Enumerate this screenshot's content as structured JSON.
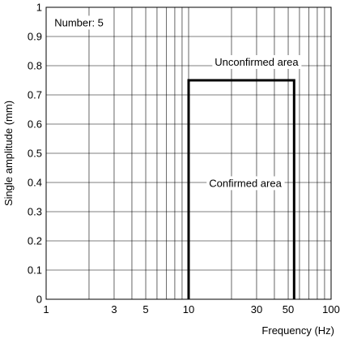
{
  "chart_data": {
    "type": "line",
    "xlabel": "Frequency (Hz)",
    "ylabel": "Single amplitude (mm)",
    "x_scale": "log",
    "xlim": [
      1,
      100
    ],
    "ylim": [
      0,
      1
    ],
    "grid": true,
    "x_ticks": [
      1,
      3,
      5,
      10,
      30,
      50,
      100
    ],
    "x_tick_labels": [
      "1",
      "3",
      "5",
      "10",
      "30",
      "50",
      "100"
    ],
    "y_ticks": [
      0,
      0.1,
      0.2,
      0.3,
      0.4,
      0.5,
      0.6,
      0.7,
      0.8,
      0.9,
      1
    ],
    "y_tick_labels": [
      "0",
      "0.1",
      "0.2",
      "0.3",
      "0.4",
      "0.5",
      "0.6",
      "0.7",
      "0.8",
      "0.9",
      "1"
    ],
    "series": [
      {
        "x": [
          10,
          10,
          55,
          55
        ],
        "y": [
          0,
          0.75,
          0.75,
          0
        ]
      }
    ],
    "annotations": [
      {
        "text": "Number: 5",
        "x": 1.7,
        "y": 0.935
      },
      {
        "text": "Unconfirmed area",
        "x": 30,
        "y": 0.8
      },
      {
        "text": "Confirmed area",
        "x": 25,
        "y": 0.385
      }
    ]
  }
}
